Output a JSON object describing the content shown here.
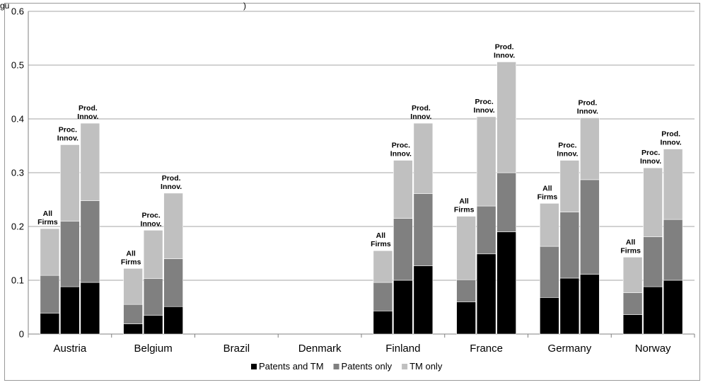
{
  "header": {
    "visible_text_left": "gu",
    "visible_text_right": ")"
  },
  "chart_data": {
    "type": "bar",
    "stacked": true,
    "title": "",
    "xlabel": "",
    "ylabel": "",
    "ylim": [
      0,
      0.6
    ],
    "yticks": [
      "0",
      "0.1",
      "0.2",
      "0.3",
      "0.4",
      "0.5",
      "0.6"
    ],
    "grid": true,
    "legend_position": "bottom",
    "categories": [
      "Austria",
      "Belgium",
      "Brazil",
      "Denmark",
      "Finland",
      "France",
      "Germany",
      "Norway"
    ],
    "group_bar_labels": [
      [
        "All",
        "Firms"
      ],
      [
        "Proc.",
        "Innov."
      ],
      [
        "Prod.",
        "Innov."
      ]
    ],
    "series": [
      {
        "name": "Patents and TM",
        "color": "#000000",
        "values": [
          [
            0.039,
            0.088,
            0.096
          ],
          [
            0.019,
            0.035,
            0.051
          ],
          [
            null,
            null,
            null
          ],
          [
            null,
            null,
            null
          ],
          [
            0.043,
            0.1,
            0.127
          ],
          [
            0.06,
            0.149,
            0.19
          ],
          [
            0.068,
            0.104,
            0.111
          ],
          [
            0.036,
            0.088,
            0.1
          ]
        ]
      },
      {
        "name": "Patents only",
        "color": "#808080",
        "values": [
          [
            0.07,
            0.122,
            0.152
          ],
          [
            0.036,
            0.068,
            0.089
          ],
          [
            null,
            null,
            null
          ],
          [
            null,
            null,
            null
          ],
          [
            0.053,
            0.115,
            0.134
          ],
          [
            0.041,
            0.089,
            0.11
          ],
          [
            0.095,
            0.123,
            0.176
          ],
          [
            0.041,
            0.093,
            0.113
          ]
        ]
      },
      {
        "name": "TM only",
        "color": "#c0c0c0",
        "values": [
          [
            0.087,
            0.142,
            0.144
          ],
          [
            0.067,
            0.09,
            0.122
          ],
          [
            null,
            null,
            null
          ],
          [
            null,
            null,
            null
          ],
          [
            0.059,
            0.108,
            0.131
          ],
          [
            0.118,
            0.166,
            0.206
          ],
          [
            0.08,
            0.096,
            0.115
          ],
          [
            0.066,
            0.128,
            0.131
          ]
        ]
      }
    ]
  }
}
